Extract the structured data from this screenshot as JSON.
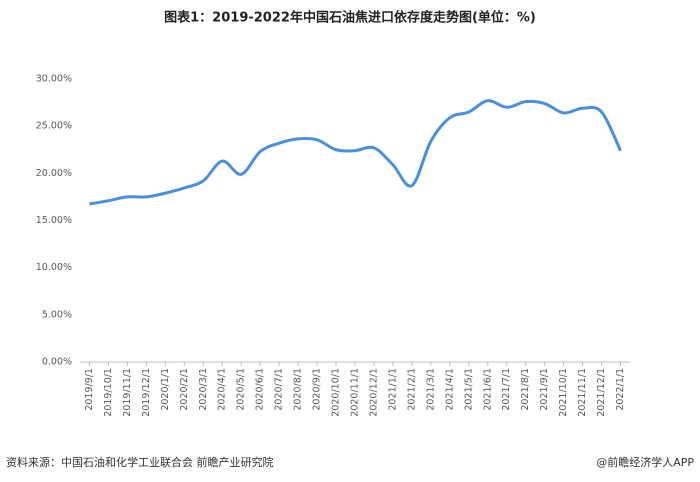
{
  "chart_data": {
    "type": "line",
    "title": "图表1：2019-2022年中国石油焦进口依存度走势图(单位：%)",
    "categories": [
      "2019/9/1",
      "2019/10/1",
      "2019/11/1",
      "2019/12/1",
      "2020/1/1",
      "2020/2/1",
      "2020/3/1",
      "2020/4/1",
      "2020/5/1",
      "2020/6/1",
      "2020/7/1",
      "2020/8/1",
      "2020/9/1",
      "2020/10/1",
      "2020/11/1",
      "2020/12/1",
      "2021/1/1",
      "2021/2/1",
      "2021/3/1",
      "2021/4/1",
      "2021/5/1",
      "2021/6/1",
      "2021/7/1",
      "2021/8/1",
      "2021/9/1",
      "2021/10/1",
      "2021/11/1",
      "2021/12/1",
      "2022/1/1"
    ],
    "values": [
      16.75,
      17.1,
      17.5,
      17.5,
      17.9,
      18.45,
      19.2,
      21.3,
      19.9,
      22.3,
      23.2,
      23.65,
      23.55,
      22.5,
      22.4,
      22.7,
      20.9,
      18.7,
      23.4,
      25.9,
      26.5,
      27.7,
      27.0,
      27.6,
      27.4,
      26.4,
      26.9,
      26.5,
      22.4
    ],
    "color": "#4a8fdc",
    "ylim": [
      0,
      30
    ],
    "yticks": [
      {
        "value": 0,
        "label": "0.00%"
      },
      {
        "value": 5,
        "label": "5.00%"
      },
      {
        "value": 10,
        "label": "10.00%"
      },
      {
        "value": 15,
        "label": "15.00%"
      },
      {
        "value": 20,
        "label": "20.00%"
      },
      {
        "value": 25,
        "label": "25.00%"
      },
      {
        "value": 30,
        "label": "30.00%"
      }
    ],
    "grid": false,
    "source": "资料来源：中国石油和化学工业联合会 前瞻产业研究院",
    "credit": "@前瞻经济学人APP"
  }
}
